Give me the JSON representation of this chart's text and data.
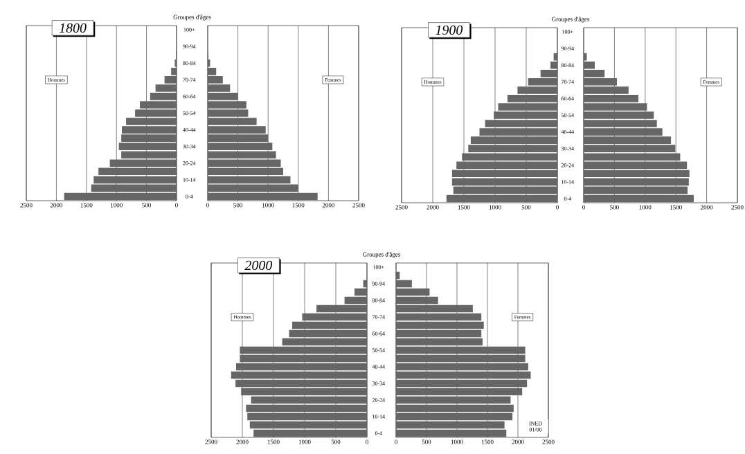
{
  "chart_data": [
    {
      "type": "bar",
      "orientation": "horizontal",
      "color": "#666666",
      "grid": "x",
      "tick_labels": "x",
      "xlim": [
        2500,
        0
      ],
      "xticks": [
        2500,
        2000,
        1500,
        1000,
        500,
        0
      ],
      "annotations": [
        "1800",
        "Hommes"
      ],
      "categories": [
        null,
        null,
        null,
        null,
        null,
        null,
        null,
        null,
        null,
        null,
        null,
        null,
        null,
        null,
        null,
        null,
        null,
        null,
        null,
        null,
        null
      ],
      "values": [
        0,
        0,
        0,
        10,
        30,
        90,
        200,
        350,
        440,
        610,
        690,
        840,
        910,
        920,
        960,
        920,
        1110,
        1300,
        1380,
        1420,
        1870
      ]
    },
    {
      "type": "bar",
      "orientation": "horizontal",
      "color": "#666666",
      "grid": "x",
      "title": "Groupes d'âges",
      "xlim": [
        0,
        2500
      ],
      "xticks": [
        0,
        500,
        1000,
        1500,
        2000,
        2500
      ],
      "annotations": [
        "Femmes"
      ],
      "categories": [
        "100+",
        null,
        "90-94",
        null,
        "80-84",
        null,
        "70-74",
        null,
        "60-64",
        null,
        "50-54",
        null,
        "40-44",
        null,
        "30-34",
        null,
        "20-24",
        null,
        "10-14",
        null,
        "0-4"
      ],
      "values": [
        0,
        0,
        0,
        10,
        40,
        140,
        250,
        370,
        500,
        640,
        670,
        810,
        960,
        1000,
        1070,
        1130,
        1210,
        1250,
        1370,
        1500,
        1820
      ]
    },
    {
      "type": "bar",
      "orientation": "horizontal",
      "color": "#666666",
      "grid": "x",
      "tick_labels": "x",
      "xlim": [
        2500,
        0
      ],
      "xticks": [
        2500,
        2000,
        1500,
        1000,
        500,
        0
      ],
      "annotations": [
        "1900",
        "Hommes"
      ],
      "categories": [
        null,
        null,
        null,
        null,
        null,
        null,
        null,
        null,
        null,
        null,
        null,
        null,
        null,
        null,
        null,
        null,
        null,
        null,
        null,
        null,
        null
      ],
      "values": [
        0,
        0,
        0,
        60,
        110,
        270,
        470,
        640,
        800,
        950,
        1020,
        1160,
        1250,
        1390,
        1430,
        1530,
        1620,
        1690,
        1690,
        1670,
        1780
      ]
    },
    {
      "type": "bar",
      "orientation": "horizontal",
      "color": "#666666",
      "grid": "x",
      "title": "Groupes d'âges",
      "xlim": [
        0,
        2500
      ],
      "xticks": [
        0,
        500,
        1000,
        1500,
        2000,
        2500
      ],
      "annotations": [
        "Femmes"
      ],
      "categories": [
        "100+",
        null,
        "90-94",
        null,
        "80-84",
        null,
        "70-74",
        null,
        "60-64",
        null,
        "50-54",
        null,
        "40-44",
        null,
        "30-34",
        null,
        "20-24",
        null,
        "10-14",
        null,
        "0-4"
      ],
      "values": [
        0,
        0,
        0,
        50,
        180,
        340,
        540,
        730,
        890,
        1030,
        1140,
        1190,
        1280,
        1420,
        1490,
        1570,
        1680,
        1720,
        1710,
        1690,
        1790
      ]
    },
    {
      "type": "bar",
      "orientation": "horizontal",
      "color": "#666666",
      "grid": "x",
      "tick_labels": "x",
      "xlim": [
        2500,
        0
      ],
      "xticks": [
        2500,
        2000,
        1500,
        1000,
        500,
        0
      ],
      "annotations": [
        "2000",
        "Hommes"
      ],
      "categories": [
        null,
        null,
        null,
        null,
        null,
        null,
        null,
        null,
        null,
        null,
        null,
        null,
        null,
        null,
        null,
        null,
        null,
        null,
        null,
        null,
        null
      ],
      "values": [
        0,
        0,
        60,
        200,
        360,
        810,
        1040,
        1200,
        1250,
        1360,
        2040,
        2040,
        2100,
        2180,
        2110,
        2020,
        1860,
        1940,
        1920,
        1880,
        1820
      ]
    },
    {
      "type": "bar",
      "orientation": "horizontal",
      "color": "#666666",
      "grid": "x",
      "title": "Groupes d'âges",
      "xlim": [
        0,
        2500
      ],
      "xticks": [
        0,
        500,
        1000,
        1500,
        2000,
        2500
      ],
      "annotations": [
        "Femmes",
        "INED 01/00"
      ],
      "categories": [
        "100+",
        null,
        "90-94",
        null,
        "80-84",
        null,
        "70-74",
        null,
        "60-64",
        null,
        "50-54",
        null,
        "40-44",
        null,
        "30-34",
        null,
        "20-24",
        null,
        "10-14",
        null,
        "0-4"
      ],
      "values": [
        0,
        60,
        260,
        550,
        690,
        1260,
        1400,
        1440,
        1400,
        1420,
        2120,
        2120,
        2170,
        2210,
        2150,
        2070,
        1880,
        1930,
        1910,
        1780,
        1810
      ]
    }
  ]
}
